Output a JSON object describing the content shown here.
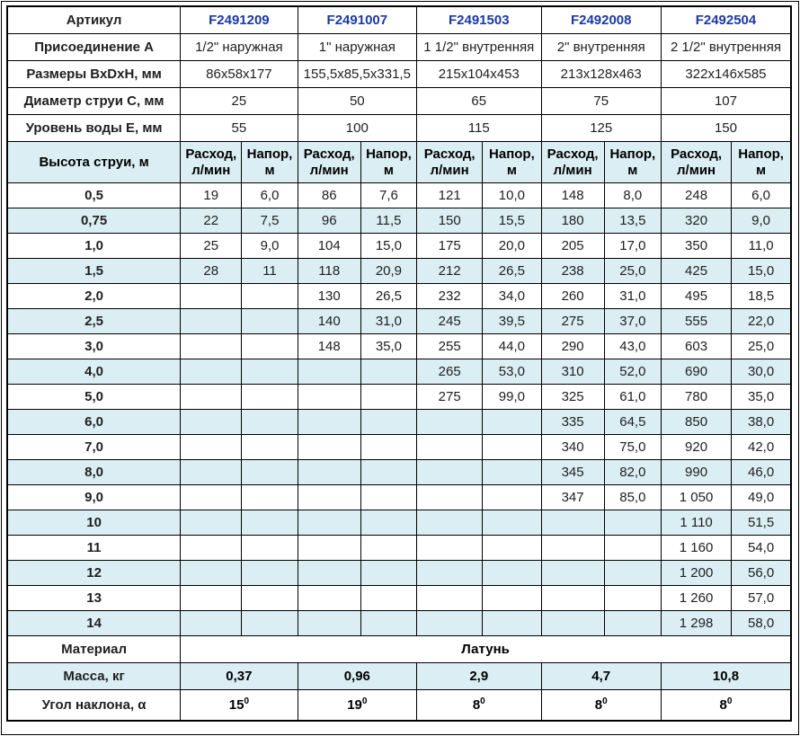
{
  "colors": {
    "stripe_blue": "#daeef3",
    "article_blue": "#1c39a3",
    "border_black": "#000000"
  },
  "table": {
    "info_rows": [
      {
        "label": "Артикул",
        "values": [
          "F2491209",
          "F2491007",
          "F2491503",
          "F2492008",
          "F2492504"
        ]
      },
      {
        "label": "Присоединение A",
        "values": [
          "1/2\" наружная",
          "1\" наружная",
          "1 1/2\" внутренняя",
          "2\" внутренняя",
          "2 1/2\" внутренняя"
        ]
      },
      {
        "label": "Размеры ВхDхН, мм",
        "values": [
          "86х58х177",
          "155,5х85,5х331,5",
          "215х104х453",
          "213х128х463",
          "322х146х585"
        ]
      },
      {
        "label": "Диаметр струи С, мм",
        "values": [
          "25",
          "50",
          "65",
          "75",
          "107"
        ]
      },
      {
        "label": "Уровень воды Е, мм",
        "values": [
          "55",
          "100",
          "115",
          "125",
          "150"
        ]
      }
    ],
    "jet_header": {
      "label": "Высота струи, м",
      "flow": "Расход,\nл/мин",
      "head": "Напор,\nм"
    },
    "jet_rows": [
      {
        "height": "0,5",
        "cells": [
          "19",
          "6,0",
          "86",
          "7,6",
          "121",
          "10,0",
          "148",
          "8,0",
          "248",
          "6,0"
        ]
      },
      {
        "height": "0,75",
        "cells": [
          "22",
          "7,5",
          "96",
          "11,5",
          "150",
          "15,5",
          "180",
          "13,5",
          "320",
          "9,0"
        ]
      },
      {
        "height": "1,0",
        "cells": [
          "25",
          "9,0",
          "104",
          "15,0",
          "175",
          "20,0",
          "205",
          "17,0",
          "350",
          "11,0"
        ]
      },
      {
        "height": "1,5",
        "cells": [
          "28",
          "11",
          "118",
          "20,9",
          "212",
          "26,5",
          "238",
          "25,0",
          "425",
          "15,0"
        ]
      },
      {
        "height": "2,0",
        "cells": [
          "",
          "",
          "130",
          "26,5",
          "232",
          "34,0",
          "260",
          "31,0",
          "495",
          "18,5"
        ]
      },
      {
        "height": "2,5",
        "cells": [
          "",
          "",
          "140",
          "31,0",
          "245",
          "39,5",
          "275",
          "37,0",
          "555",
          "22,0"
        ]
      },
      {
        "height": "3,0",
        "cells": [
          "",
          "",
          "148",
          "35,0",
          "255",
          "44,0",
          "290",
          "43,0",
          "603",
          "25,0"
        ]
      },
      {
        "height": "4,0",
        "cells": [
          "",
          "",
          "",
          "",
          "265",
          "53,0",
          "310",
          "52,0",
          "690",
          "30,0"
        ]
      },
      {
        "height": "5,0",
        "cells": [
          "",
          "",
          "",
          "",
          "275",
          "99,0",
          "325",
          "61,0",
          "780",
          "35,0"
        ]
      },
      {
        "height": "6,0",
        "cells": [
          "",
          "",
          "",
          "",
          "",
          "",
          "335",
          "64,5",
          "850",
          "38,0"
        ]
      },
      {
        "height": "7,0",
        "cells": [
          "",
          "",
          "",
          "",
          "",
          "",
          "340",
          "75,0",
          "920",
          "42,0"
        ]
      },
      {
        "height": "8,0",
        "cells": [
          "",
          "",
          "",
          "",
          "",
          "",
          "345",
          "82,0",
          "990",
          "46,0"
        ]
      },
      {
        "height": "9,0",
        "cells": [
          "",
          "",
          "",
          "",
          "",
          "",
          "347",
          "85,0",
          "1 050",
          "49,0"
        ]
      },
      {
        "height": "10",
        "cells": [
          "",
          "",
          "",
          "",
          "",
          "",
          "",
          "",
          "1 110",
          "51,5"
        ]
      },
      {
        "height": "11",
        "cells": [
          "",
          "",
          "",
          "",
          "",
          "",
          "",
          "",
          "1 160",
          "54,0"
        ]
      },
      {
        "height": "12",
        "cells": [
          "",
          "",
          "",
          "",
          "",
          "",
          "",
          "",
          "1 200",
          "56,0"
        ]
      },
      {
        "height": "13",
        "cells": [
          "",
          "",
          "",
          "",
          "",
          "",
          "",
          "",
          "1 260",
          "57,0"
        ]
      },
      {
        "height": "14",
        "cells": [
          "",
          "",
          "",
          "",
          "",
          "",
          "",
          "",
          "1 298",
          "58,0"
        ]
      }
    ],
    "material": {
      "label": "Материал",
      "value": "Латунь"
    },
    "mass": {
      "label": "Масса, кг",
      "values": [
        "0,37",
        "0,96",
        "2,9",
        "4,7",
        "10,8"
      ]
    },
    "angle": {
      "label": "Угол наклона, α",
      "values": [
        "15",
        "19",
        "8",
        "8",
        "8"
      ],
      "sup": "0"
    }
  }
}
